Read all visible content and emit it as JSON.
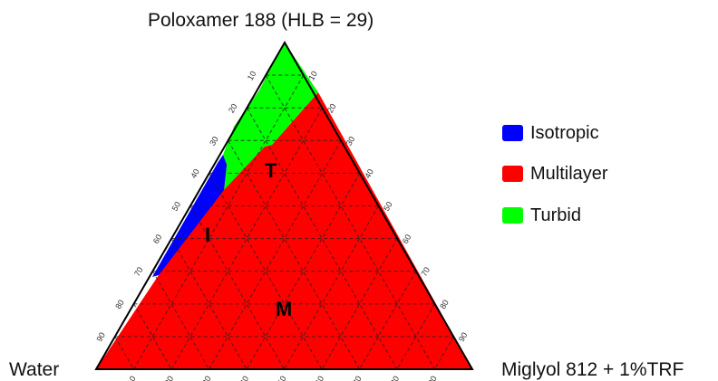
{
  "vertices": {
    "top": "Poloxamer 188 (HLB = 29)",
    "left": "Water",
    "right": "Miglyol 812 + 1%TRF"
  },
  "ticks": [
    "10",
    "20",
    "30",
    "40",
    "50",
    "60",
    "70",
    "80",
    "90"
  ],
  "regions": [
    {
      "id": "I",
      "label": "I",
      "name": "Isotropic",
      "color": "#0000ff"
    },
    {
      "id": "M",
      "label": "M",
      "name": "Multilayer",
      "color": "#ff0000"
    },
    {
      "id": "T",
      "label": "T",
      "name": "Turbid",
      "color": "#00ff00"
    }
  ],
  "legend": [
    {
      "label": "Isotropic",
      "color": "#0000ff"
    },
    {
      "label": "Multilayer",
      "color": "#ff0000"
    },
    {
      "label": "Turbid",
      "color": "#00ff00"
    }
  ]
}
